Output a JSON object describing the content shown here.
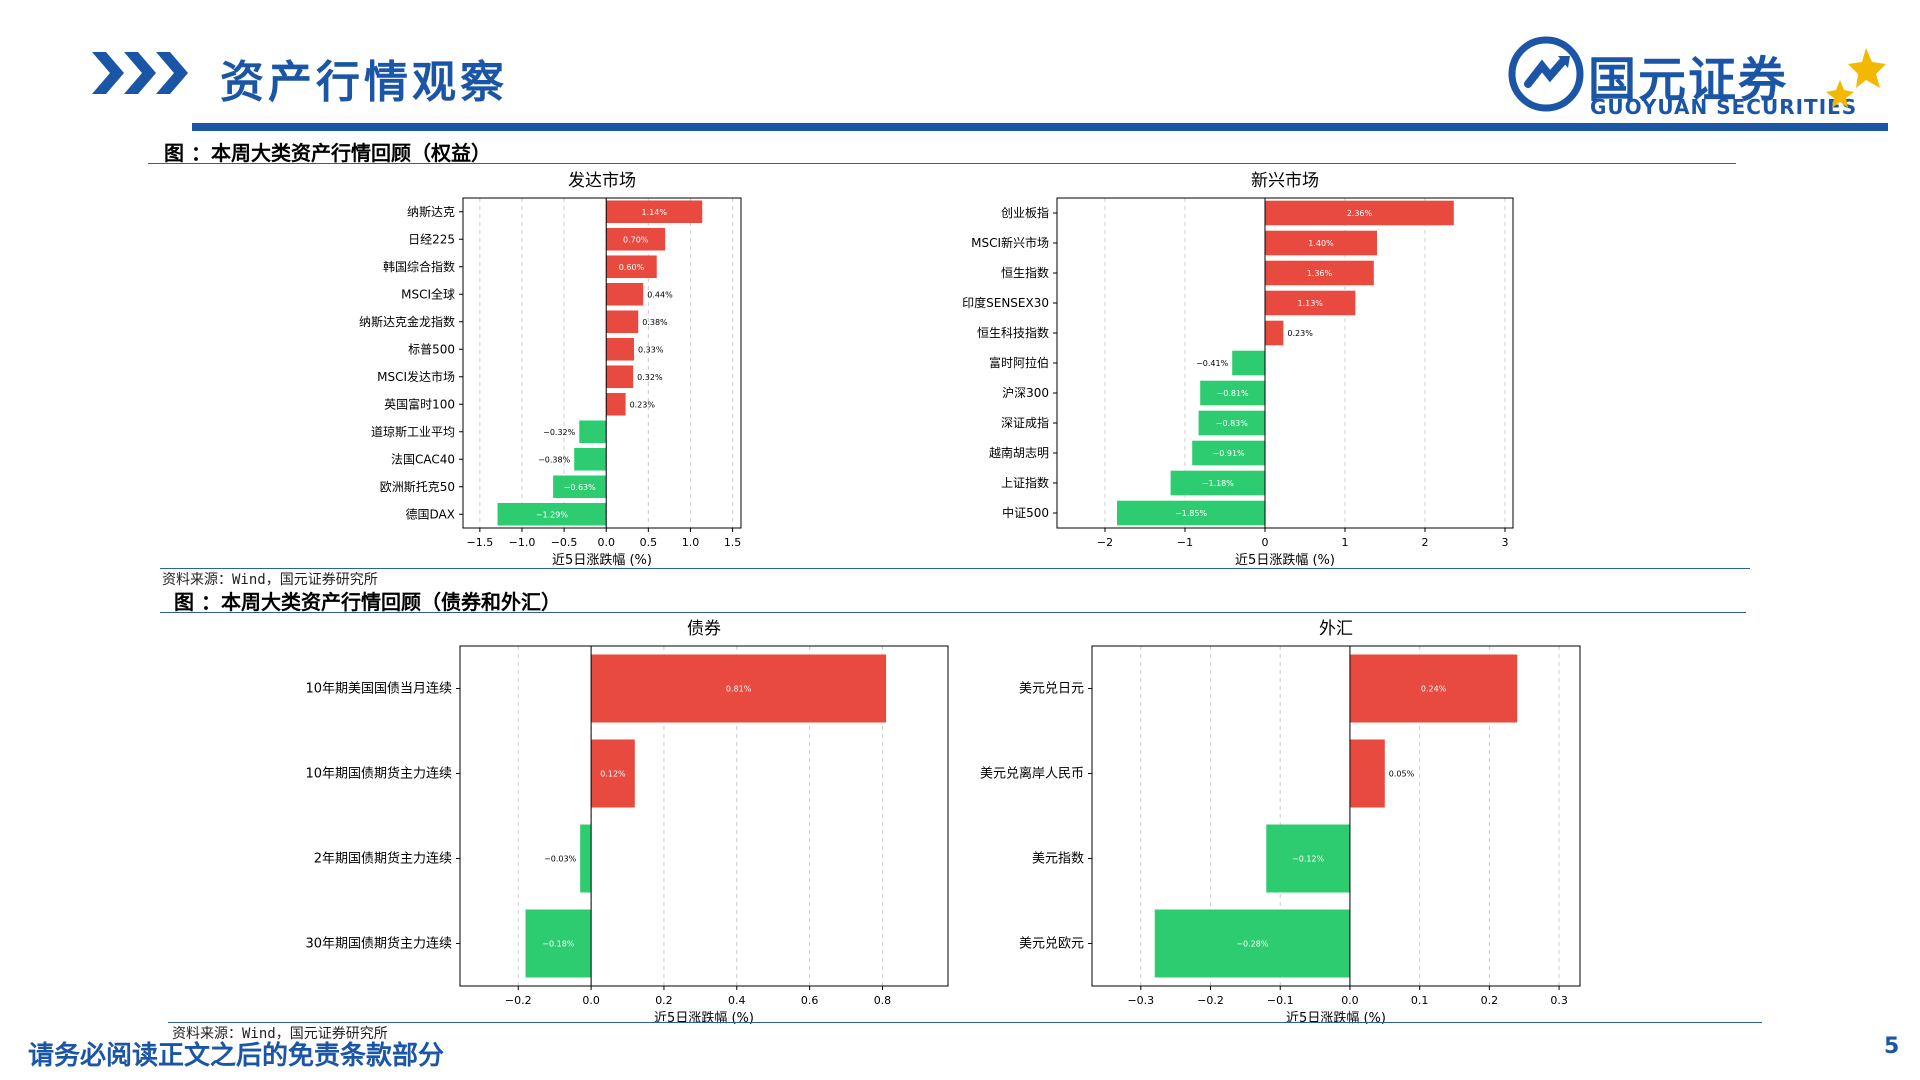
{
  "header": {
    "title": "资产行情观察",
    "brand_cn": "国元证券",
    "brand_en": "GUOYUAN SECURITIES"
  },
  "figures": [
    {
      "title": "图 ：本周大类资产行情回顾（权益）",
      "source": "资料来源：Wind，国元证券研究所"
    },
    {
      "title": "图 ：本周大类资产行情回顾（债券和外汇）",
      "source": "资料来源：Wind，国元证券研究所"
    }
  ],
  "footer": {
    "disclaimer": "请务必阅读正文之后的免责条款部分",
    "page": "5"
  },
  "colors": {
    "brand": "#1a55a6",
    "positive": "#e84a3f",
    "negative": "#2ecc71"
  },
  "chart_data": [
    {
      "type": "bar",
      "orientation": "horizontal",
      "title": "发达市场",
      "xlabel": "近5日涨跌幅 (%)",
      "xlim": [
        -1.7,
        1.6
      ],
      "xticks": [
        -1.5,
        -1.0,
        -0.5,
        0.0,
        0.5,
        1.0,
        1.5
      ],
      "tick_labels": [
        "−1.5",
        "−1.0",
        "−0.5",
        "0.0",
        "0.5",
        "1.0",
        "1.5"
      ],
      "categories": [
        "纳斯达克",
        "日经225",
        "韩国综合指数",
        "MSCI全球",
        "纳斯达克金龙指数",
        "标普500",
        "MSCI发达市场",
        "英国富时100",
        "道琼斯工业平均",
        "法国CAC40",
        "欧洲斯托克50",
        "德国DAX"
      ],
      "values": [
        1.14,
        0.7,
        0.6,
        0.44,
        0.38,
        0.33,
        0.32,
        0.23,
        -0.32,
        -0.38,
        -0.63,
        -1.29
      ],
      "labels": [
        "1.14%",
        "0.70%",
        "0.60%",
        "0.44%",
        "0.38%",
        "0.33%",
        "0.32%",
        "0.23%",
        "−0.32%",
        "−0.38%",
        "−0.63%",
        "−1.29%"
      ],
      "grid": "x-dashed"
    },
    {
      "type": "bar",
      "orientation": "horizontal",
      "title": "新兴市场",
      "xlabel": "近5日涨跌幅 (%)",
      "xlim": [
        -2.6,
        3.1
      ],
      "xticks": [
        -2,
        -1,
        0,
        1,
        2,
        3
      ],
      "tick_labels": [
        "−2",
        "−1",
        "0",
        "1",
        "2",
        "3"
      ],
      "categories": [
        "创业板指",
        "MSCI新兴市场",
        "恒生指数",
        "印度SENSEX30",
        "恒生科技指数",
        "富时阿拉伯",
        "沪深300",
        "深证成指",
        "越南胡志明",
        "上证指数",
        "中证500"
      ],
      "values": [
        2.36,
        1.4,
        1.36,
        1.13,
        0.23,
        -0.41,
        -0.81,
        -0.83,
        -0.91,
        -1.18,
        -1.85
      ],
      "labels": [
        "2.36%",
        "1.40%",
        "1.36%",
        "1.13%",
        "0.23%",
        "−0.41%",
        "−0.81%",
        "−0.83%",
        "−0.91%",
        "−1.18%",
        "−1.85%"
      ],
      "grid": "x-dashed"
    },
    {
      "type": "bar",
      "orientation": "horizontal",
      "title": "债券",
      "xlabel": "近5日涨跌幅 (%)",
      "xlim": [
        -0.36,
        0.98
      ],
      "xticks": [
        -0.2,
        0.0,
        0.2,
        0.4,
        0.6,
        0.8
      ],
      "tick_labels": [
        "−0.2",
        "0.0",
        "0.2",
        "0.4",
        "0.6",
        "0.8"
      ],
      "categories": [
        "10年期美国国债当月连续",
        "10年期国债期货主力连续",
        "2年期国债期货主力连续",
        "30年期国债期货主力连续"
      ],
      "values": [
        0.81,
        0.12,
        -0.03,
        -0.18
      ],
      "labels": [
        "0.81%",
        "0.12%",
        "−0.03%",
        "−0.18%"
      ],
      "grid": "x-dashed"
    },
    {
      "type": "bar",
      "orientation": "horizontal",
      "title": "外汇",
      "xlabel": "近5日涨跌幅 (%)",
      "xlim": [
        -0.37,
        0.33
      ],
      "xticks": [
        -0.3,
        -0.2,
        -0.1,
        0.0,
        0.1,
        0.2,
        0.3
      ],
      "tick_labels": [
        "−0.3",
        "−0.2",
        "−0.1",
        "0.0",
        "0.1",
        "0.2",
        "0.3"
      ],
      "categories": [
        "美元兑日元",
        "美元兑离岸人民币",
        "美元指数",
        "美元兑欧元"
      ],
      "values": [
        0.24,
        0.05,
        -0.12,
        -0.28
      ],
      "labels": [
        "0.24%",
        "0.05%",
        "−0.12%",
        "−0.28%"
      ],
      "grid": "x-dashed"
    }
  ]
}
